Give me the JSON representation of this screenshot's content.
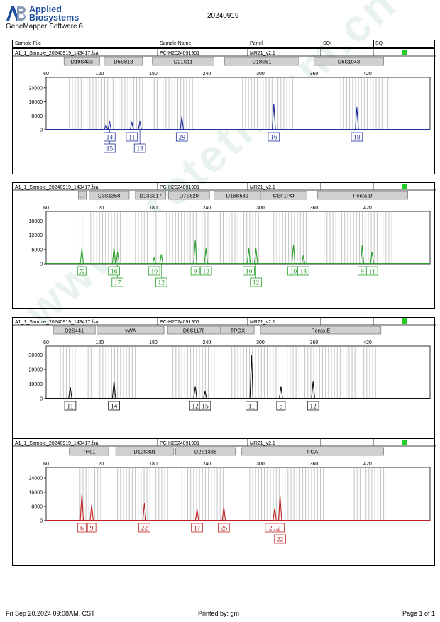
{
  "header": {
    "brand_line1": "Applied",
    "brand_line2": "Biosystems",
    "software": "GeneMapper Software 6",
    "date": "20240919"
  },
  "table_header": {
    "sample_file": "Sample File",
    "sample_name": "Sample Name",
    "panel": "Panel",
    "sqi": "SQI",
    "sq": "SQ"
  },
  "sample": {
    "file": "A1_1_Sample_20240919_143417.fsa",
    "name": "PC-H2024091901",
    "panel": "MR21_v2.1",
    "status_color": "#22cc22"
  },
  "footer": {
    "timestamp": "Fri Sep 20,2024 09:08AM, CST",
    "printed_by": "Printed by: gm",
    "page": "Page 1 of 1"
  },
  "watermark": "www.proteti.com.cn",
  "chart_data": [
    {
      "type": "line",
      "color": "#1f2fa0",
      "xlim": [
        60,
        490
      ],
      "xticks": [
        60,
        120,
        180,
        240,
        300,
        360,
        420
      ],
      "ylim": [
        0,
        30000
      ],
      "yticks": [
        0,
        8000,
        16000,
        24000
      ],
      "markers": [
        "D19S433",
        "D5S818",
        "D21S11",
        "D18S51",
        "D6S1043"
      ],
      "peaks": [
        {
          "x": 127,
          "y": 3000
        },
        {
          "x": 131,
          "y": 5000
        },
        {
          "x": 156,
          "y": 4500
        },
        {
          "x": 165,
          "y": 4800
        },
        {
          "x": 212,
          "y": 7500
        },
        {
          "x": 315,
          "y": 15000
        },
        {
          "x": 408,
          "y": 13000
        }
      ],
      "alleles_row1": [
        {
          "x": 131,
          "label": "14"
        },
        {
          "x": 156,
          "label": "11"
        },
        {
          "x": 212,
          "label": "29"
        },
        {
          "x": 315,
          "label": "16"
        },
        {
          "x": 408,
          "label": "18"
        }
      ],
      "alleles_row2": [
        {
          "x": 131,
          "label": "15"
        },
        {
          "x": 165,
          "label": "13"
        }
      ]
    },
    {
      "type": "line",
      "color": "#2aa02a",
      "xlim": [
        60,
        490
      ],
      "xticks": [
        60,
        120,
        180,
        240,
        300,
        360,
        420
      ],
      "ylim": [
        0,
        22000
      ],
      "yticks": [
        0,
        6000,
        12000,
        18000
      ],
      "markers": [
        "...",
        "D3S1358",
        "D13S317",
        "D7S820",
        "D16S539",
        "CSF1PO",
        "Penta D"
      ],
      "peaks": [
        {
          "x": 100,
          "y": 6500
        },
        {
          "x": 136,
          "y": 7000
        },
        {
          "x": 140,
          "y": 5000
        },
        {
          "x": 181,
          "y": 2500
        },
        {
          "x": 189,
          "y": 4000
        },
        {
          "x": 227,
          "y": 10000
        },
        {
          "x": 239,
          "y": 6500
        },
        {
          "x": 287,
          "y": 6500
        },
        {
          "x": 295,
          "y": 6500
        },
        {
          "x": 337,
          "y": 8000
        },
        {
          "x": 348,
          "y": 3500
        },
        {
          "x": 414,
          "y": 8000
        },
        {
          "x": 425,
          "y": 5000
        }
      ],
      "alleles_row1": [
        {
          "x": 100,
          "label": "X"
        },
        {
          "x": 136,
          "label": "16"
        },
        {
          "x": 181,
          "label": "10"
        },
        {
          "x": 227,
          "label": "9"
        },
        {
          "x": 239,
          "label": "12"
        },
        {
          "x": 287,
          "label": "10"
        },
        {
          "x": 337,
          "label": "10"
        },
        {
          "x": 348,
          "label": "13"
        },
        {
          "x": 414,
          "label": "9"
        },
        {
          "x": 425,
          "label": "11"
        }
      ],
      "alleles_row2": [
        {
          "x": 140,
          "label": "17"
        },
        {
          "x": 189,
          "label": "12"
        },
        {
          "x": 295,
          "label": "12"
        }
      ]
    },
    {
      "type": "line",
      "color": "#111111",
      "xlim": [
        60,
        490
      ],
      "xticks": [
        60,
        120,
        180,
        240,
        300,
        360,
        420
      ],
      "ylim": [
        0,
        36000
      ],
      "yticks": [
        0,
        10000,
        20000,
        30000
      ],
      "markers": [
        "D2S441",
        "vWA",
        "D8S1179",
        "TPOX",
        "Penta E"
      ],
      "peaks": [
        {
          "x": 87,
          "y": 8000
        },
        {
          "x": 136,
          "y": 12000
        },
        {
          "x": 227,
          "y": 8500
        },
        {
          "x": 238,
          "y": 5000
        },
        {
          "x": 290,
          "y": 30000
        },
        {
          "x": 323,
          "y": 8500
        },
        {
          "x": 359,
          "y": 12000
        }
      ],
      "alleles_row1": [
        {
          "x": 87,
          "label": "11"
        },
        {
          "x": 136,
          "label": "14"
        },
        {
          "x": 227,
          "label": "12"
        },
        {
          "x": 238,
          "label": "15"
        },
        {
          "x": 290,
          "label": "11"
        },
        {
          "x": 323,
          "label": "5"
        },
        {
          "x": 359,
          "label": "12"
        }
      ],
      "alleles_row2": []
    },
    {
      "type": "line",
      "color": "#c02020",
      "xlim": [
        60,
        490
      ],
      "xticks": [
        60,
        120,
        180,
        240,
        300,
        360,
        420
      ],
      "ylim": [
        0,
        30000
      ],
      "yticks": [
        0,
        8000,
        16000,
        24000
      ],
      "markers": [
        "TH01",
        "D12S391",
        "D2S1338",
        "FGA"
      ],
      "peaks": [
        {
          "x": 100,
          "y": 15000
        },
        {
          "x": 111,
          "y": 9000
        },
        {
          "x": 170,
          "y": 10000
        },
        {
          "x": 229,
          "y": 6500
        },
        {
          "x": 259,
          "y": 7500
        },
        {
          "x": 316,
          "y": 7000
        },
        {
          "x": 322,
          "y": 14000
        }
      ],
      "alleles_row1": [
        {
          "x": 100,
          "label": "6"
        },
        {
          "x": 111,
          "label": "9"
        },
        {
          "x": 170,
          "label": "22"
        },
        {
          "x": 229,
          "label": "17"
        },
        {
          "x": 259,
          "label": "25"
        },
        {
          "x": 316,
          "label": "20.2"
        }
      ],
      "alleles_row2": [
        {
          "x": 322,
          "label": "22"
        }
      ]
    }
  ]
}
